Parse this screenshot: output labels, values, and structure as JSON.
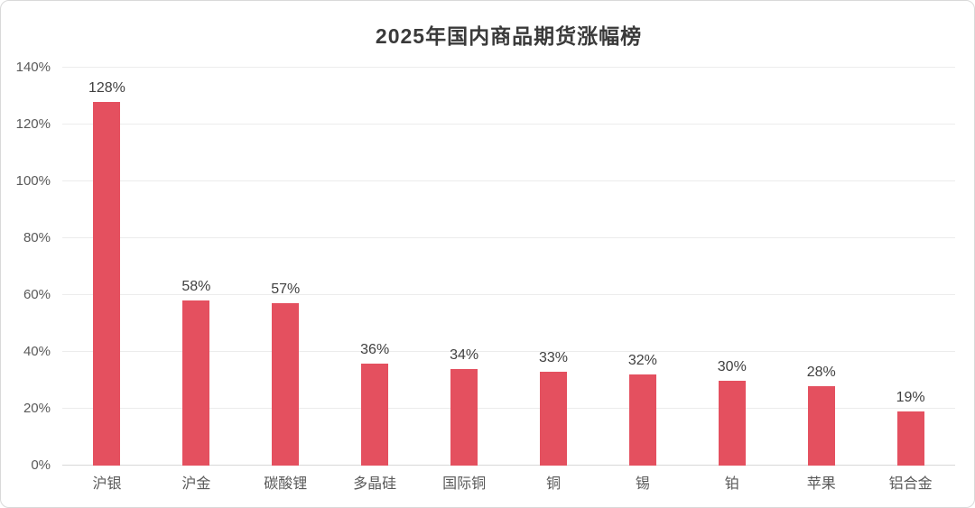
{
  "title": "2025年国内商品期货涨幅榜",
  "colors": {
    "background": "#ffffff",
    "border": "#d9d9d9",
    "title_text": "#3a3a3a",
    "axis_text": "#595959",
    "label_text": "#404040",
    "bar": "#e4505f",
    "gridline": "#ececec",
    "baseline": "#d9d9d9"
  },
  "chart_data": {
    "type": "bar",
    "title": "2025年国内商品期货涨幅榜",
    "categories": [
      "沪银",
      "沪金",
      "碳酸锂",
      "多晶硅",
      "国际铜",
      "铜",
      "锡",
      "铂",
      "苹果",
      "铝合金"
    ],
    "values": [
      128,
      58,
      57,
      36,
      34,
      33,
      32,
      30,
      28,
      19
    ],
    "data_labels": [
      "128%",
      "58%",
      "57%",
      "36%",
      "34%",
      "33%",
      "32%",
      "30%",
      "28%",
      "19%"
    ],
    "xlabel": "",
    "ylabel": "",
    "ylim": [
      0,
      140
    ],
    "yticks": [
      0,
      20,
      40,
      60,
      80,
      100,
      120,
      140
    ],
    "ytick_labels": [
      "0%",
      "20%",
      "40%",
      "60%",
      "80%",
      "100%",
      "120%",
      "140%"
    ],
    "grid": true,
    "legend": false,
    "bar_label_position": "above"
  }
}
